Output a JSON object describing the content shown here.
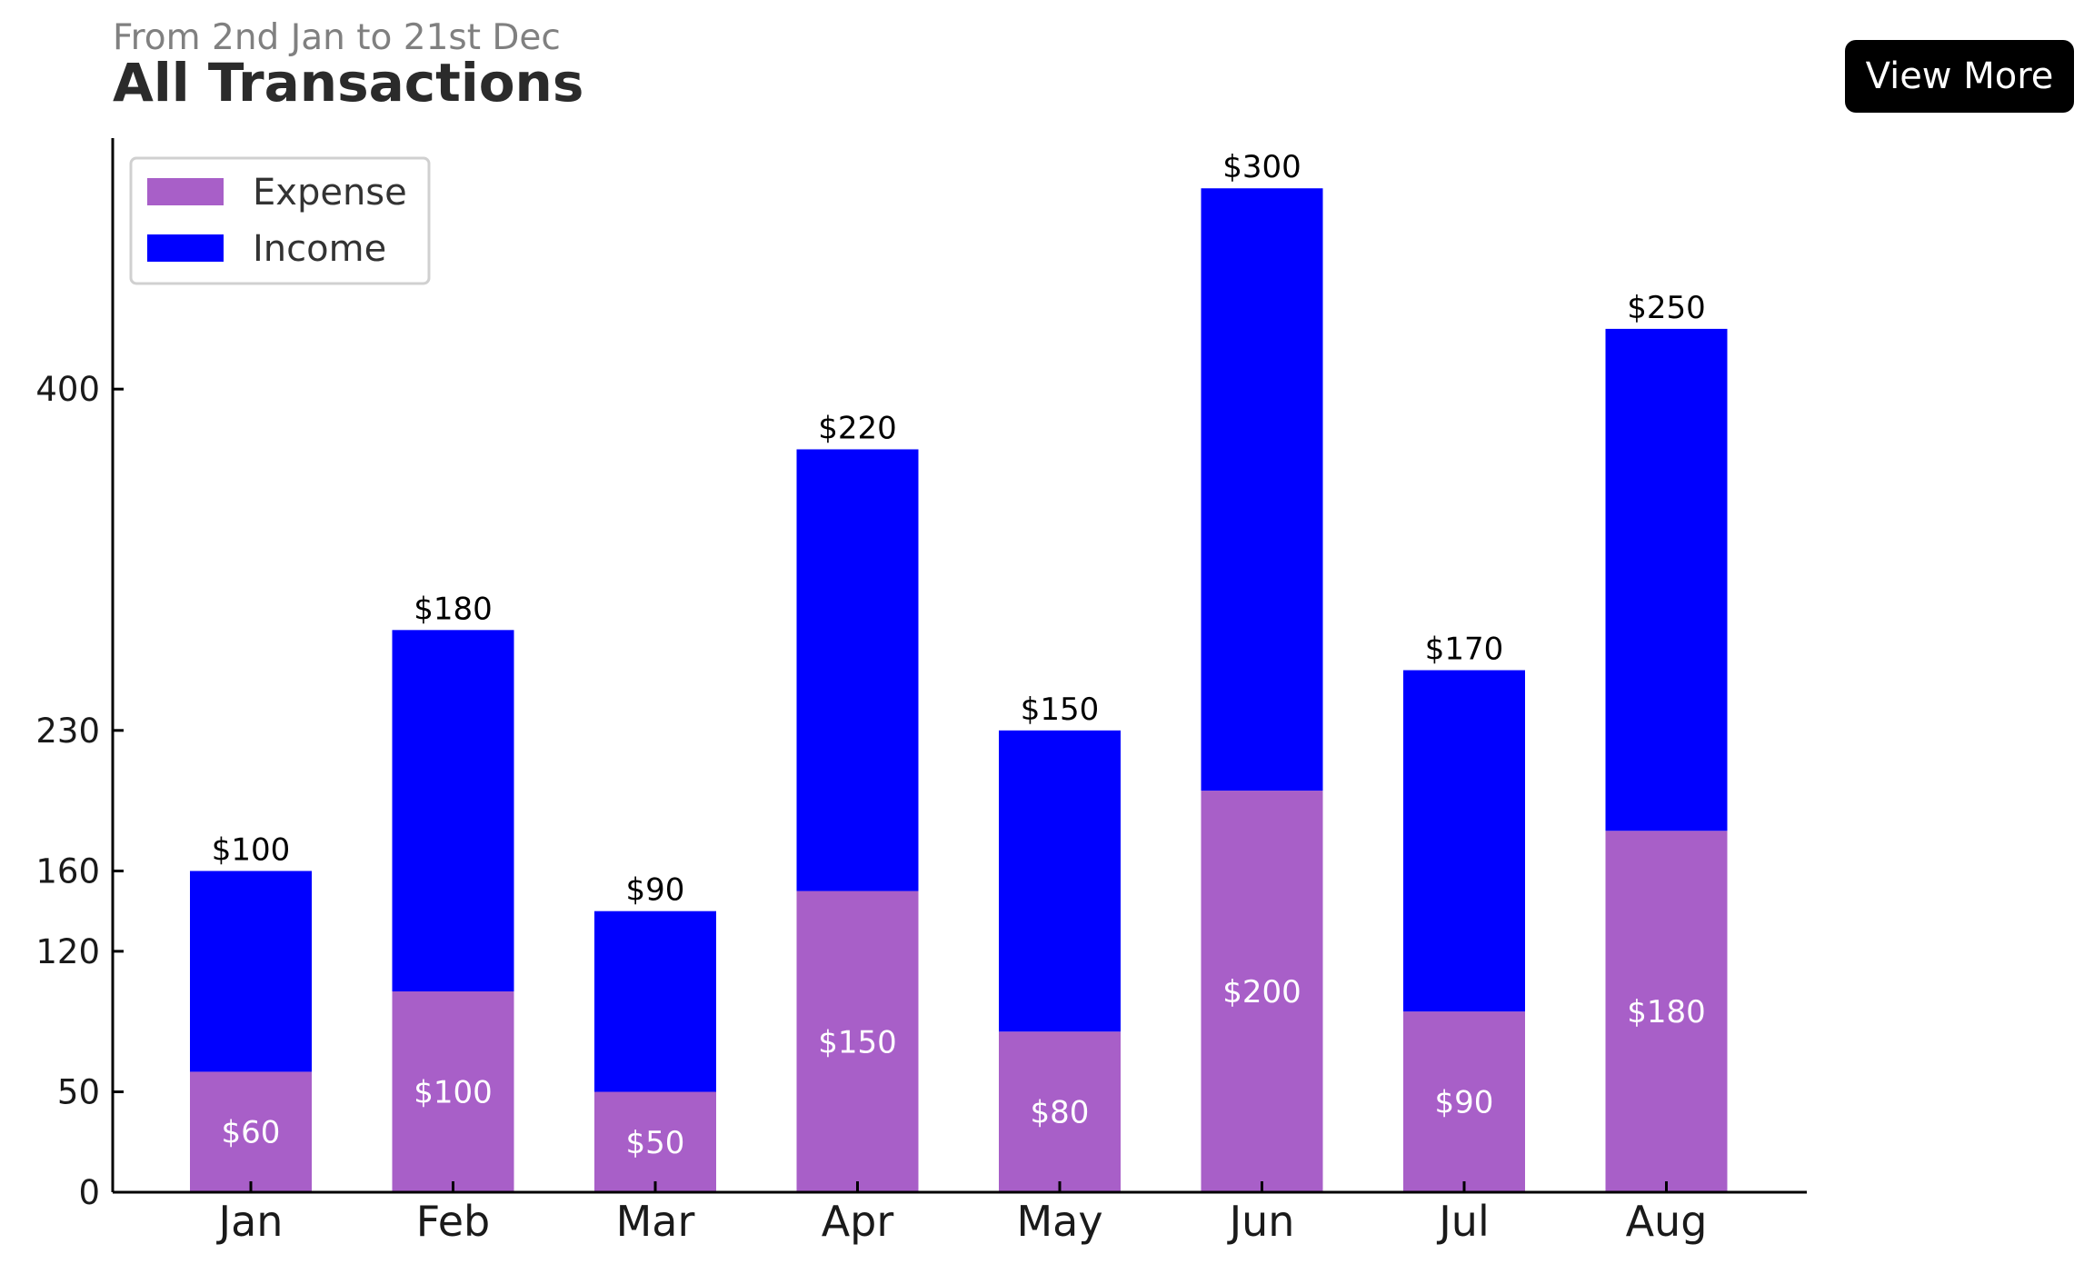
{
  "header": {
    "subtitle": "From 2nd Jan to 21st Dec",
    "title": "All Transactions",
    "view_more_label": "View More"
  },
  "colors": {
    "expense": "#a85fc8",
    "income": "#0000ff",
    "axis": "#000000"
  },
  "chart_data": {
    "type": "bar",
    "stacked": true,
    "title": "All Transactions",
    "subtitle": "From 2nd Jan to 21st Dec",
    "categories": [
      "Jan",
      "Feb",
      "Mar",
      "Apr",
      "May",
      "Jun",
      "Jul",
      "Aug"
    ],
    "series": [
      {
        "name": "Expense",
        "values": [
          60,
          100,
          50,
          150,
          80,
          200,
          90,
          180
        ],
        "labels": [
          "$60",
          "$100",
          "$50",
          "$150",
          "$80",
          "$200",
          "$90",
          "$180"
        ]
      },
      {
        "name": "Income",
        "values": [
          100,
          180,
          90,
          220,
          150,
          300,
          170,
          250
        ],
        "labels": [
          "$100",
          "$180",
          "$90",
          "$220",
          "$150",
          "$300",
          "$170",
          "$250"
        ]
      }
    ],
    "y_ticks": [
      0,
      50,
      120,
      160,
      230,
      400
    ],
    "y_tick_labels": [
      "0",
      "50",
      "120",
      "160",
      "230",
      "400"
    ],
    "ylim": [
      0,
      525
    ],
    "xlabel": "",
    "ylabel": "",
    "grid": false,
    "legend": "top-left"
  }
}
